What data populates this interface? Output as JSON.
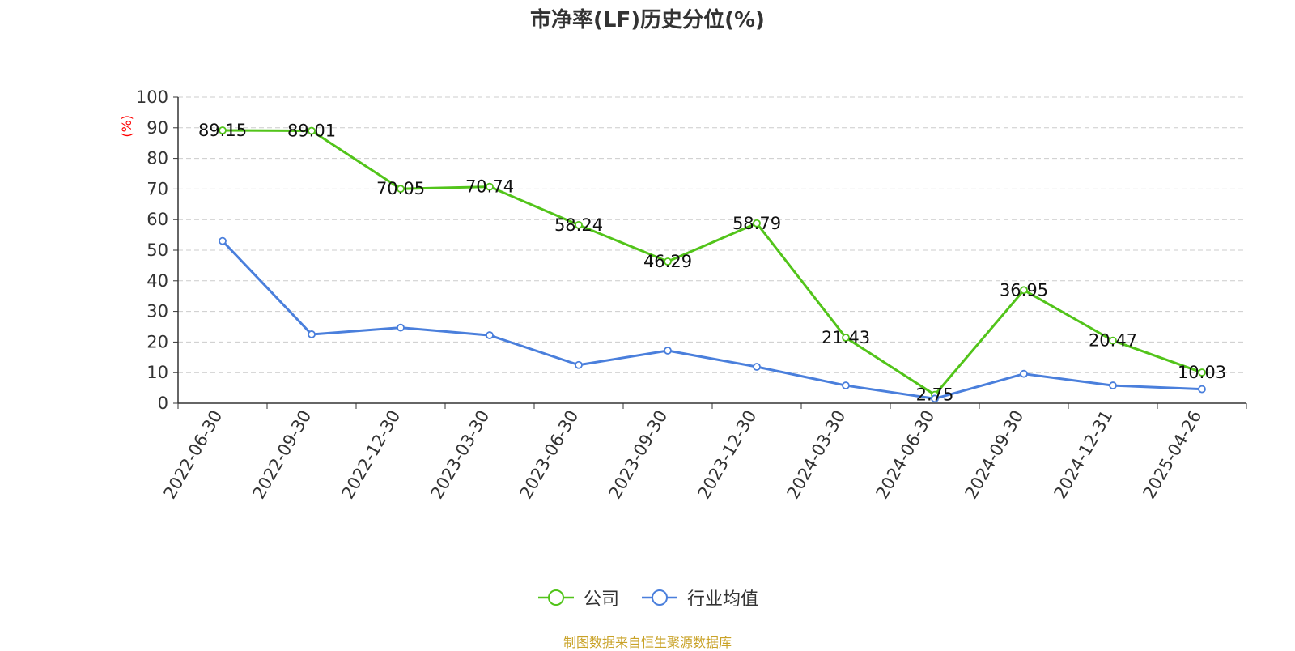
{
  "title": "市净率(LF)历史分位(%)",
  "source_note": "制图数据来自恒生聚源数据库",
  "colors": {
    "company": "#52C41A",
    "industry": "#4A7FDC",
    "grid": "#cccccc",
    "axis": "#333333",
    "unit": "#FF0000"
  },
  "chart_data": {
    "type": "line",
    "title": "市净率(LF)历史分位(%)",
    "ylabel": "(%)",
    "ylim": [
      0,
      100
    ],
    "yticks": [
      0,
      10,
      20,
      30,
      40,
      50,
      60,
      70,
      80,
      90,
      100
    ],
    "grid": true,
    "legend_position": "bottom",
    "categories": [
      "2022-06-30",
      "2022-09-30",
      "2022-12-30",
      "2023-03-30",
      "2023-06-30",
      "2023-09-30",
      "2023-12-30",
      "2024-03-30",
      "2024-06-30",
      "2024-09-30",
      "2024-12-31",
      "2025-04-26"
    ],
    "series": [
      {
        "name": "公司",
        "color": "#52C41A",
        "show_labels": true,
        "values": [
          89.15,
          89.01,
          70.05,
          70.74,
          58.24,
          46.29,
          58.79,
          21.43,
          2.75,
          36.95,
          20.47,
          10.03
        ]
      },
      {
        "name": "行业均值",
        "color": "#4A7FDC",
        "show_labels": false,
        "values": [
          53.0,
          22.5,
          24.7,
          22.2,
          12.5,
          17.2,
          11.9,
          5.8,
          1.5,
          9.6,
          5.8,
          4.6
        ]
      }
    ]
  }
}
